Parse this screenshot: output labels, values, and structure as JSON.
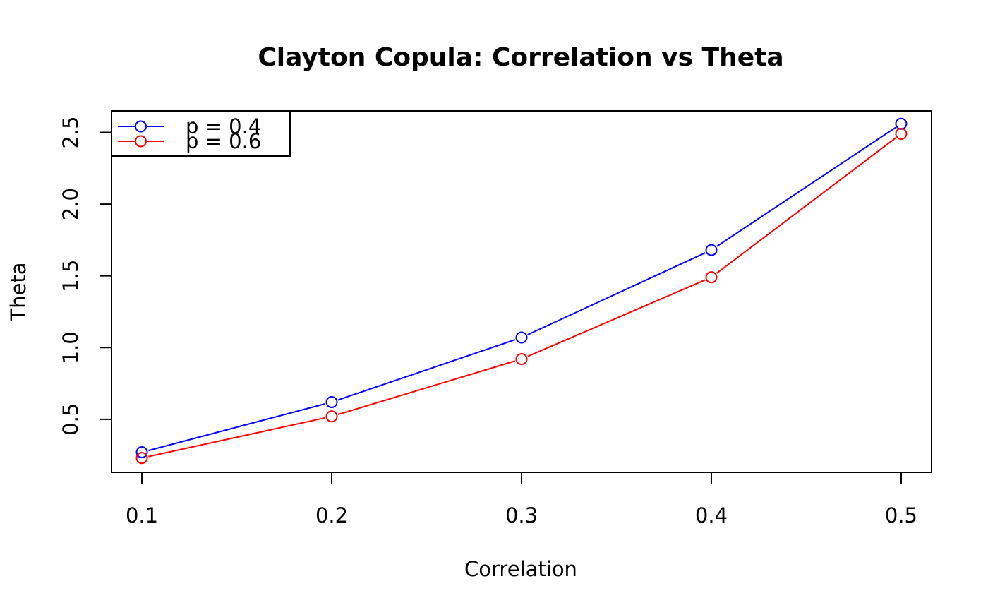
{
  "chart_data": {
    "type": "line",
    "title": "Clayton Copula: Correlation vs Theta",
    "xlabel": "Correlation",
    "ylabel": "Theta",
    "x": [
      0.1,
      0.2,
      0.3,
      0.4,
      0.5
    ],
    "x_tick_labels": [
      "0.1",
      "0.2",
      "0.3",
      "0.4",
      "0.5"
    ],
    "y_ticks": [
      0.5,
      1.0,
      1.5,
      2.0,
      2.5
    ],
    "y_tick_labels": [
      "0.5",
      "1.0",
      "1.5",
      "2.0",
      "2.5"
    ],
    "xlim": [
      0.084,
      0.516
    ],
    "ylim": [
      0.13,
      2.65
    ],
    "grid": false,
    "legend_position": "top-left",
    "markers": "open-circle",
    "series": [
      {
        "name": "p = 0.4",
        "color": "#0000ff",
        "values": [
          0.27,
          0.62,
          1.07,
          1.68,
          2.56
        ]
      },
      {
        "name": "p = 0.6",
        "color": "#ff0000",
        "values": [
          0.23,
          0.52,
          0.92,
          1.49,
          2.49
        ]
      }
    ]
  }
}
